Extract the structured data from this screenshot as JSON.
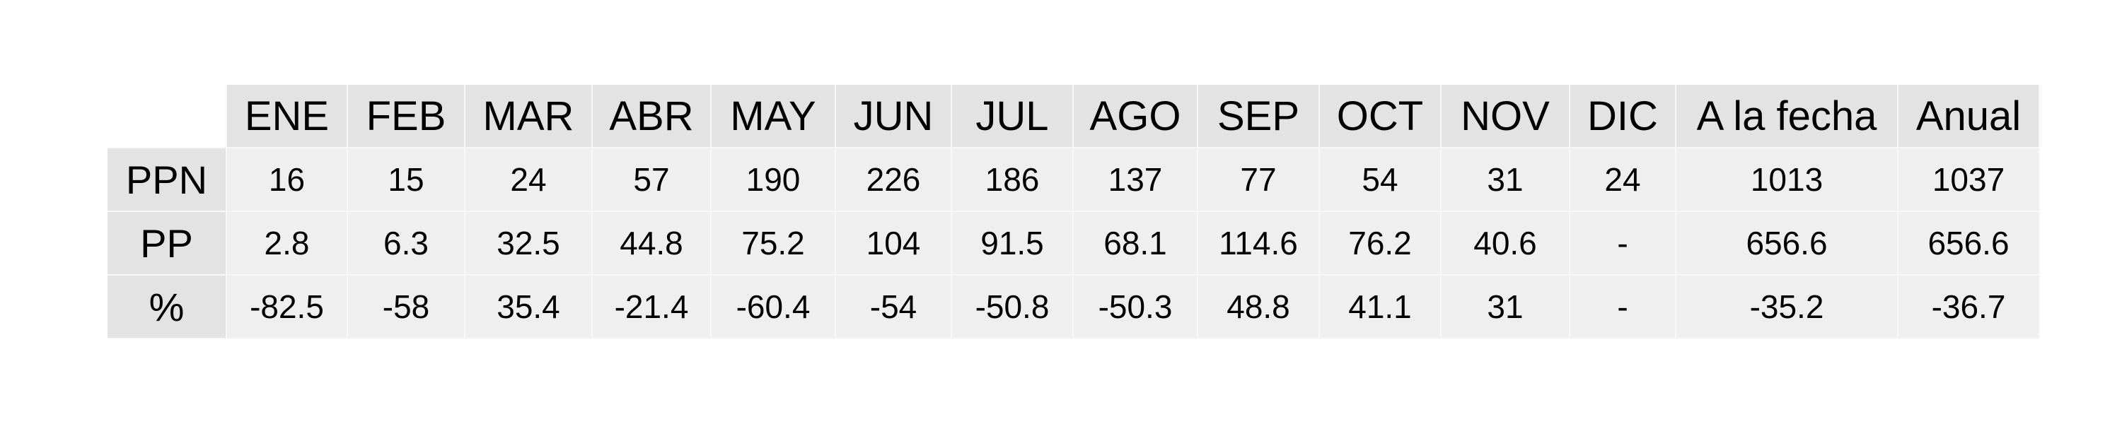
{
  "chart_data": {
    "type": "table",
    "columns": [
      "ENE",
      "FEB",
      "MAR",
      "ABR",
      "MAY",
      "JUN",
      "JUL",
      "AGO",
      "SEP",
      "OCT",
      "NOV",
      "DIC",
      "A la fecha",
      "Anual"
    ],
    "rows": [
      {
        "label": "PPN",
        "values": [
          "16",
          "15",
          "24",
          "57",
          "190",
          "226",
          "186",
          "137",
          "77",
          "54",
          "31",
          "24",
          "1013",
          "1037"
        ]
      },
      {
        "label": "PP",
        "values": [
          "2.8",
          "6.3",
          "32.5",
          "44.8",
          "75.2",
          "104",
          "91.5",
          "68.1",
          "114.6",
          "76.2",
          "40.6",
          "-",
          "656.6",
          "656.6"
        ]
      },
      {
        "label": "%",
        "values": [
          "-82.5",
          "-58",
          "35.4",
          "-21.4",
          "-60.4",
          "-54",
          "-50.8",
          "-50.3",
          "48.8",
          "41.1",
          "31",
          "-",
          "-35.2",
          "-36.7"
        ]
      }
    ],
    "colors": {
      "header_bg": "#e3e3e3",
      "cell_bg": "#efefef",
      "cell_border": "#f7f7f7",
      "text": "#000000"
    }
  }
}
